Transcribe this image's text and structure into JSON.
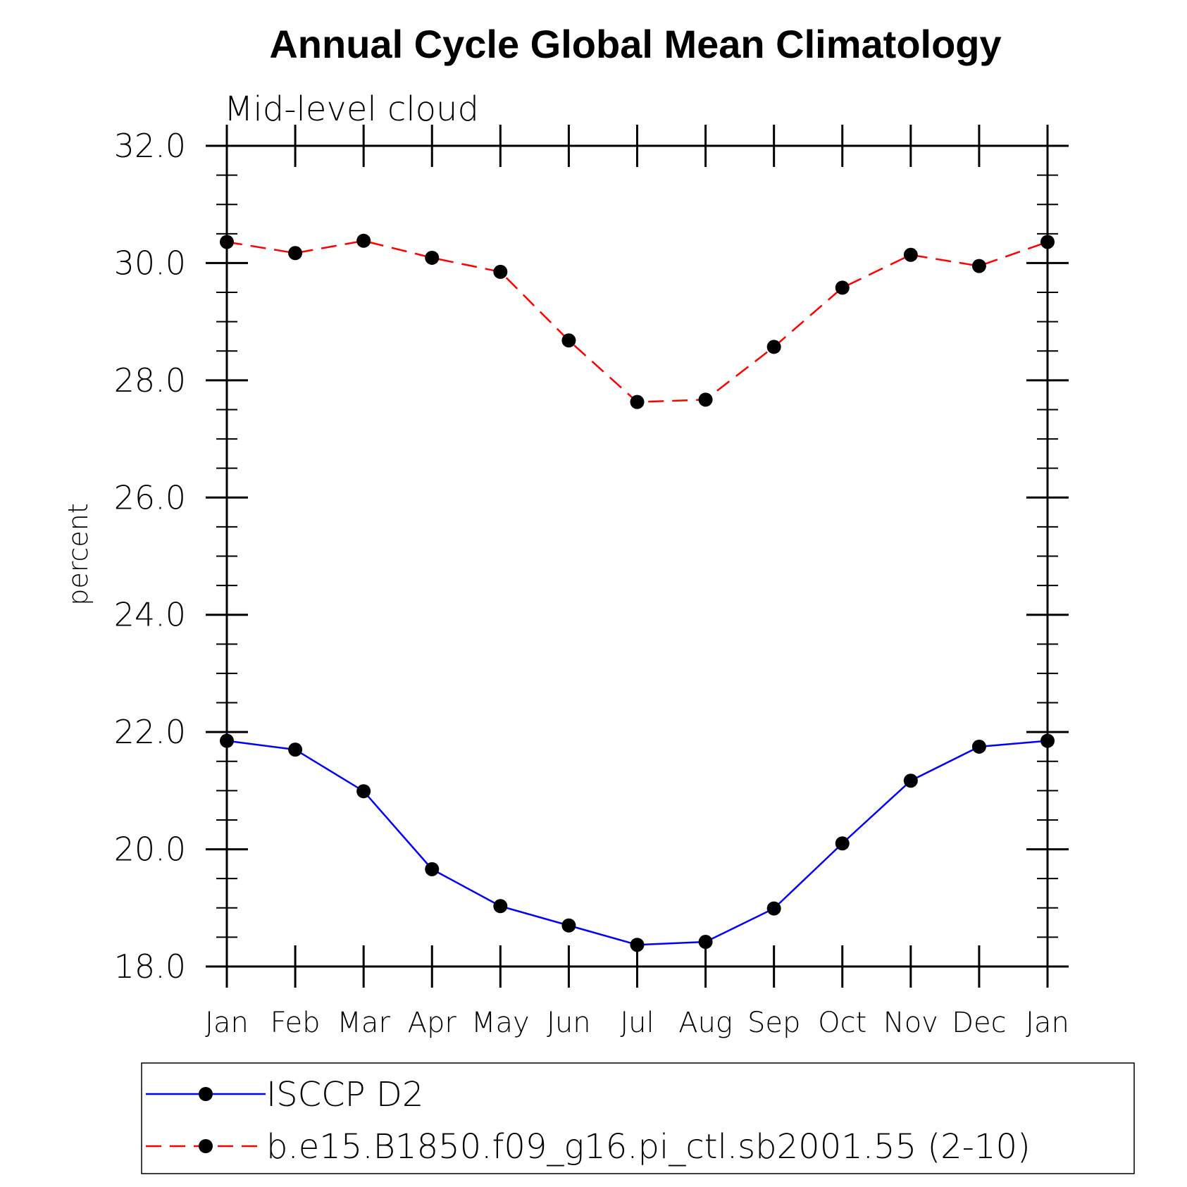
{
  "chart_data": {
    "type": "line",
    "title": "Annual Cycle Global Mean Climatology",
    "subtitle": "Mid-level cloud",
    "ylabel": "percent",
    "xlabel": "",
    "categories": [
      "Jan",
      "Feb",
      "Mar",
      "Apr",
      "May",
      "Jun",
      "Jul",
      "Aug",
      "Sep",
      "Oct",
      "Nov",
      "Dec",
      "Jan"
    ],
    "ylim": [
      18.0,
      32.0
    ],
    "yticks": [
      "18.0",
      "20.0",
      "22.0",
      "24.0",
      "26.0",
      "28.0",
      "30.0",
      "32.0"
    ],
    "grid": false,
    "legend_position": "bottom",
    "series": [
      {
        "name": "ISCCP D2",
        "color": "#0000ff",
        "line_style": "solid",
        "marker": "filled-circle",
        "values": [
          21.85,
          21.7,
          20.99,
          19.66,
          19.03,
          18.7,
          18.37,
          18.42,
          18.99,
          20.1,
          21.17,
          21.75,
          21.85
        ]
      },
      {
        "name": "b.e15.B1850.f09_g16.pi_ctl.sb2001.55 (2-10)",
        "color": "#ff0000",
        "line_style": "dashed",
        "marker": "filled-circle",
        "values": [
          30.36,
          30.17,
          30.38,
          30.09,
          29.85,
          28.68,
          27.63,
          27.67,
          28.57,
          29.58,
          30.14,
          29.95,
          30.36
        ]
      }
    ]
  }
}
